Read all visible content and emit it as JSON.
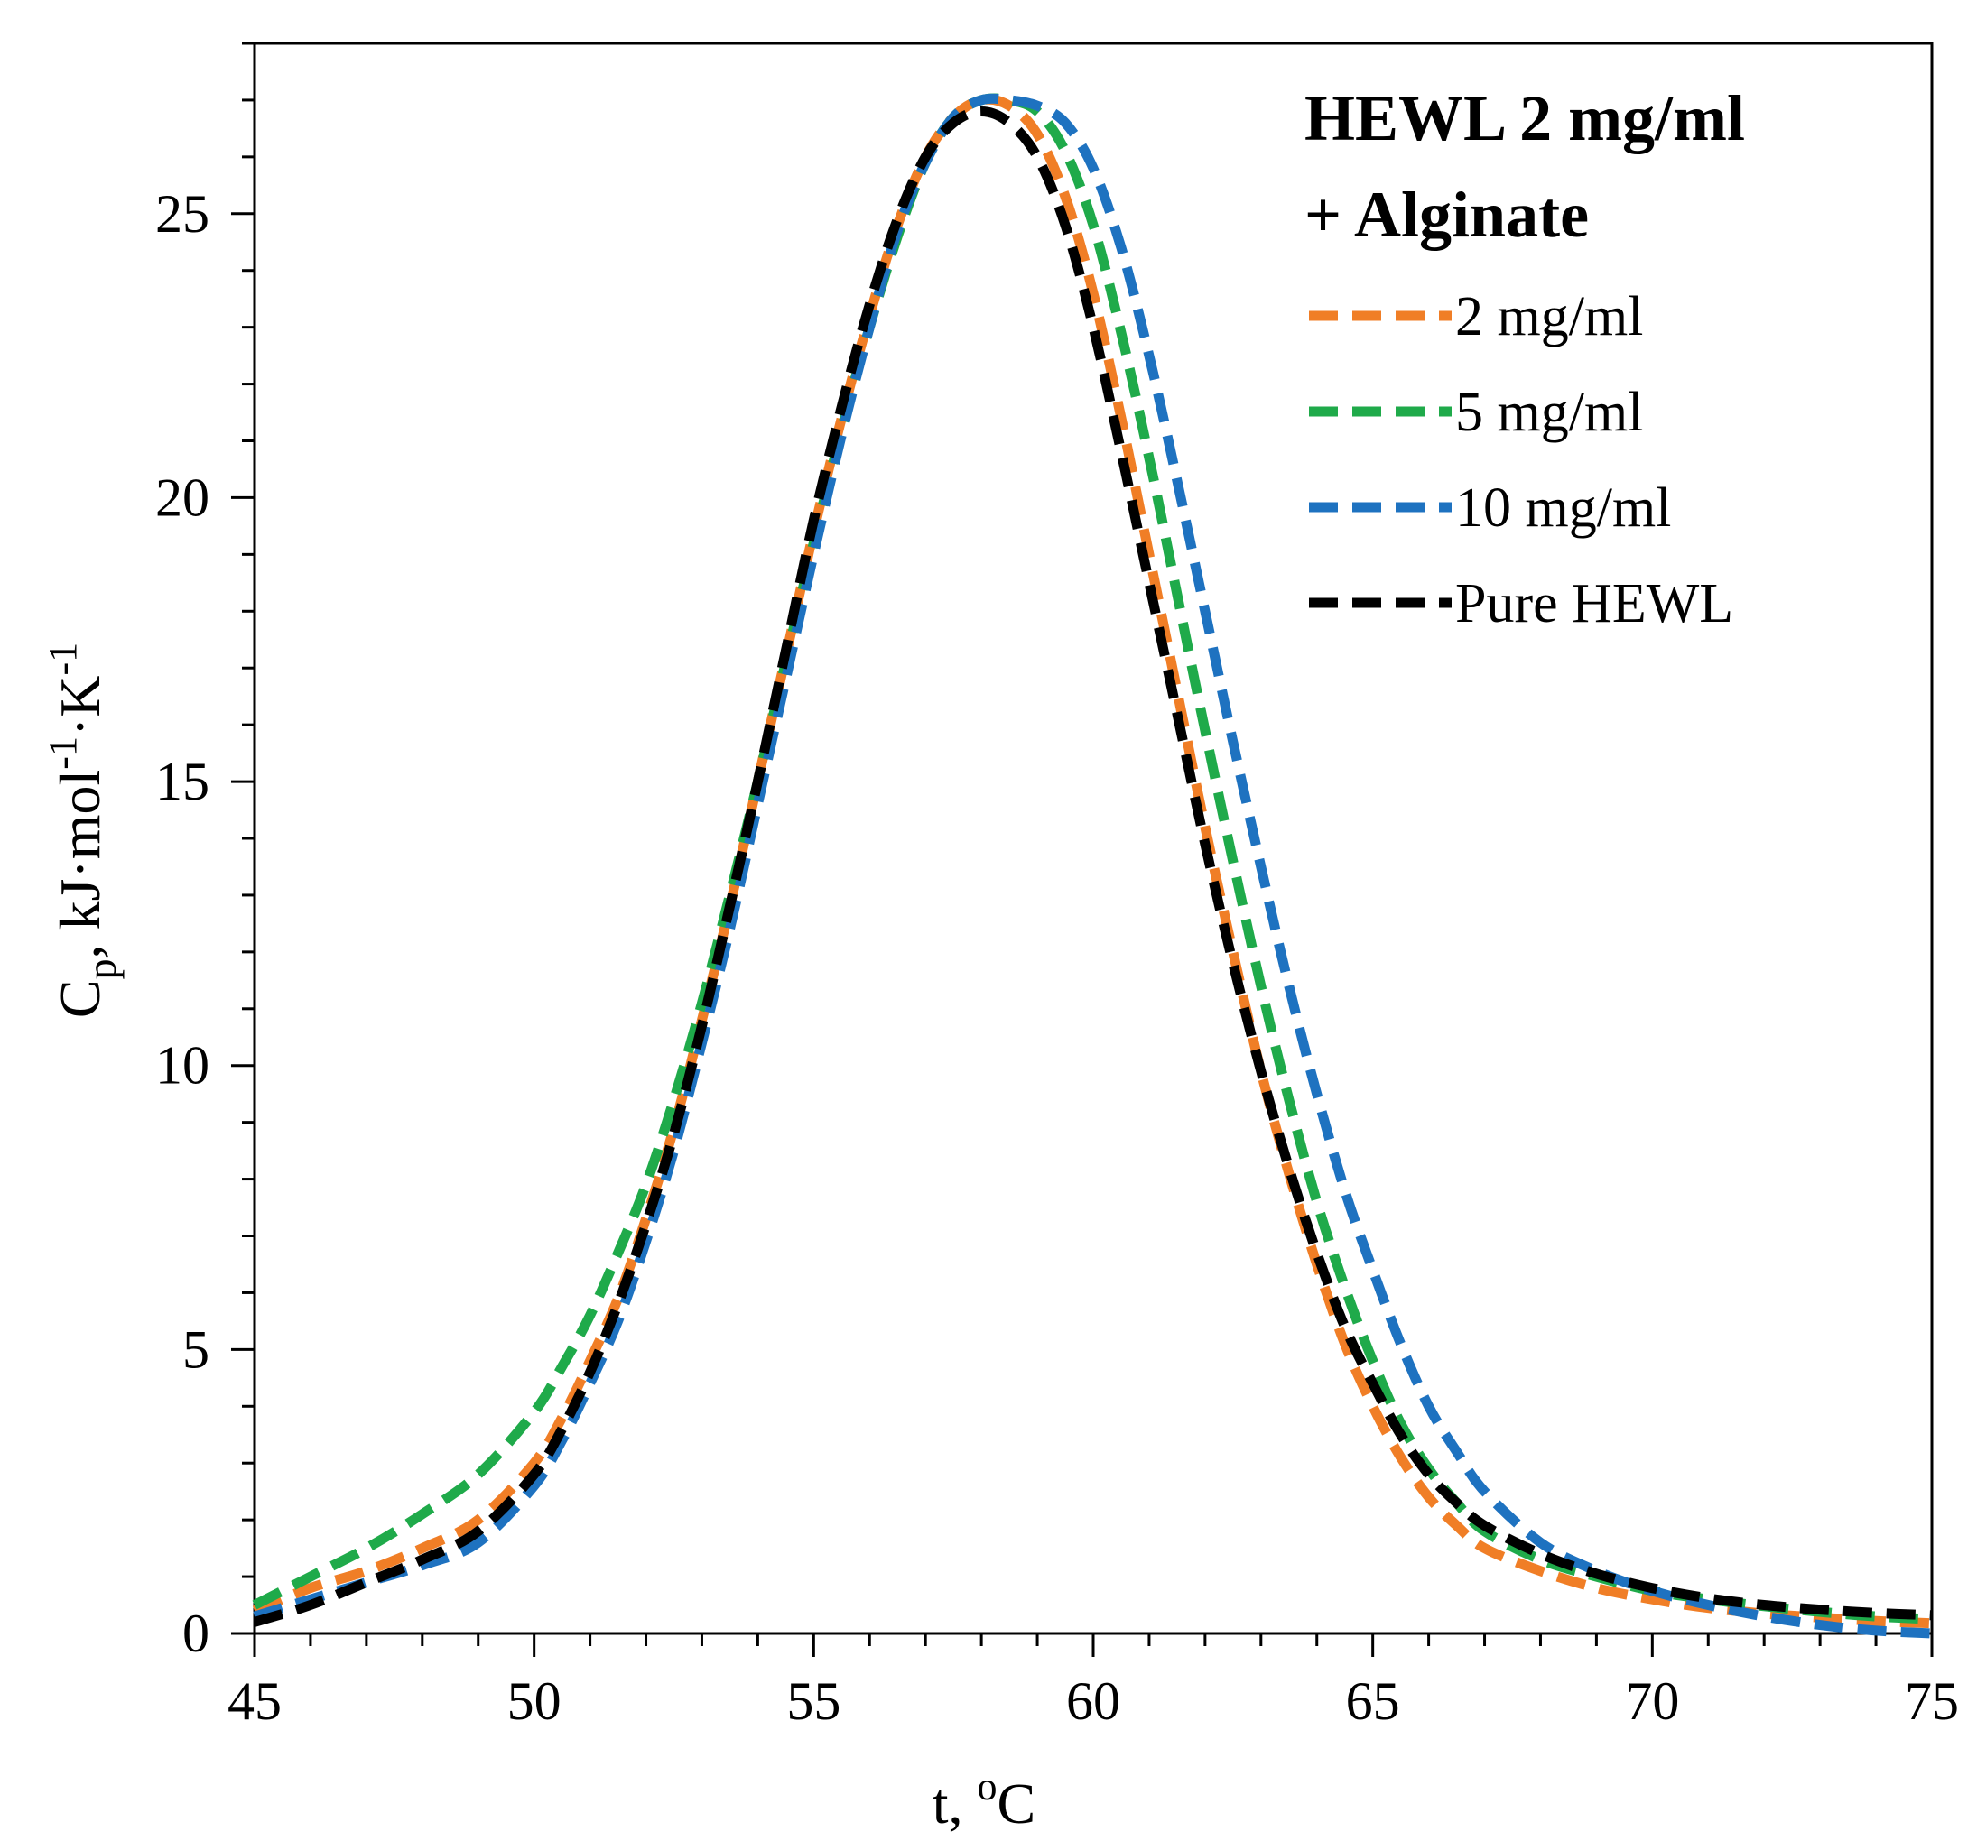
{
  "chart_data": {
    "type": "line",
    "title_line1": "HEWL 2 mg/ml",
    "title_line2": "+ Alginate",
    "xlabel": {
      "prefix": "t, ",
      "sup": "o",
      "unit": "C"
    },
    "ylabel": {
      "main": "C",
      "sub": "p",
      "rest1": ", kJ·mol",
      "sup1": "-1",
      "rest2": "·K",
      "sup2": "-1"
    },
    "xlim": [
      45,
      75
    ],
    "ylim": [
      0,
      28
    ],
    "xticks": [
      45,
      50,
      55,
      60,
      65,
      70,
      75
    ],
    "yticks": [
      0,
      5,
      10,
      15,
      20,
      25
    ],
    "x_minor_step": 1,
    "y_minor_step": 1,
    "grid": false,
    "legend_position": "top-right",
    "series": [
      {
        "name": "2 mg/ml",
        "color": "#F07E26",
        "x": [
          45,
          46,
          47,
          48,
          49,
          50,
          50.5,
          51,
          51.5,
          52,
          52.5,
          53,
          53.5,
          54,
          54.5,
          55,
          55.5,
          56,
          56.5,
          57,
          57.5,
          58,
          58.5,
          59,
          59.5,
          60,
          60.5,
          61,
          61.5,
          62,
          62.5,
          63,
          63.5,
          64,
          64.5,
          65,
          65.5,
          66,
          66.5,
          67,
          68,
          69,
          70,
          71,
          72,
          73,
          74,
          75
        ],
        "values": [
          0.4,
          0.8,
          1.1,
          1.5,
          2.0,
          3.0,
          3.8,
          4.8,
          5.9,
          7.3,
          8.9,
          10.8,
          12.8,
          15.0,
          17.2,
          19.4,
          21.4,
          23.2,
          24.8,
          26.0,
          26.7,
          27.0,
          26.9,
          26.4,
          25.3,
          23.6,
          21.4,
          19.0,
          16.6,
          14.2,
          12.0,
          9.9,
          8.1,
          6.5,
          5.1,
          4.0,
          3.1,
          2.4,
          1.9,
          1.5,
          1.1,
          0.8,
          0.6,
          0.45,
          0.35,
          0.28,
          0.22,
          0.18
        ]
      },
      {
        "name": "5 mg/ml",
        "color": "#1FAA4A",
        "x": [
          45,
          46,
          47,
          48,
          49,
          50,
          50.5,
          51,
          51.5,
          52,
          52.5,
          53,
          53.5,
          54,
          54.5,
          55,
          55.5,
          56,
          56.5,
          57,
          57.5,
          58,
          58.5,
          59,
          59.5,
          60,
          60.5,
          61,
          61.5,
          62,
          62.5,
          63,
          63.5,
          64,
          64.5,
          65,
          65.5,
          66,
          66.5,
          67,
          68,
          69,
          70,
          71,
          72,
          73,
          74,
          75
        ],
        "values": [
          0.5,
          1.0,
          1.5,
          2.1,
          2.8,
          3.9,
          4.7,
          5.6,
          6.7,
          7.9,
          9.4,
          11.1,
          13.0,
          15.0,
          17.1,
          19.2,
          21.2,
          23.0,
          24.6,
          25.9,
          26.7,
          27.0,
          27.0,
          26.8,
          26.1,
          24.8,
          22.9,
          20.7,
          18.3,
          15.9,
          13.6,
          11.4,
          9.4,
          7.6,
          6.1,
          4.8,
          3.7,
          2.9,
          2.3,
          1.8,
          1.3,
          1.0,
          0.75,
          0.6,
          0.48,
          0.38,
          0.3,
          0.25
        ]
      },
      {
        "name": "10 mg/ml",
        "color": "#1E72C0",
        "x": [
          45,
          46,
          47,
          48,
          49,
          50,
          50.5,
          51,
          51.5,
          52,
          52.5,
          53,
          53.5,
          54,
          54.5,
          55,
          55.5,
          56,
          56.5,
          57,
          57.5,
          58,
          58.5,
          59,
          59.5,
          60,
          60.5,
          61,
          61.5,
          62,
          62.5,
          63,
          63.5,
          64,
          64.5,
          65,
          65.5,
          66,
          66.5,
          67,
          68,
          69,
          70,
          71,
          72,
          73,
          74,
          75
        ],
        "values": [
          0.3,
          0.6,
          0.9,
          1.2,
          1.6,
          2.6,
          3.4,
          4.4,
          5.5,
          6.9,
          8.5,
          10.4,
          12.4,
          14.6,
          16.8,
          19.0,
          21.1,
          23.0,
          24.7,
          25.9,
          26.7,
          27.0,
          27.0,
          26.9,
          26.6,
          25.8,
          24.4,
          22.5,
          20.3,
          18.0,
          15.7,
          13.5,
          11.4,
          9.5,
          7.8,
          6.4,
          5.1,
          4.0,
          3.2,
          2.5,
          1.6,
          1.1,
          0.75,
          0.5,
          0.3,
          0.15,
          0.05,
          0.0
        ]
      },
      {
        "name": "Pure HEWL",
        "color": "#000000",
        "x": [
          45,
          46,
          47,
          48,
          49,
          50,
          50.5,
          51,
          51.5,
          52,
          52.5,
          53,
          53.5,
          54,
          54.5,
          55,
          55.5,
          56,
          56.5,
          57,
          57.5,
          58,
          58.5,
          59,
          59.5,
          60,
          60.5,
          61,
          61.5,
          62,
          62.5,
          63,
          63.5,
          64,
          64.5,
          65,
          65.5,
          66,
          66.5,
          67,
          68,
          69,
          70,
          71,
          72,
          73,
          74,
          75
        ],
        "values": [
          0.2,
          0.5,
          0.9,
          1.3,
          1.8,
          2.8,
          3.6,
          4.6,
          5.8,
          7.2,
          8.8,
          10.7,
          12.8,
          15.0,
          17.3,
          19.6,
          21.6,
          23.4,
          24.9,
          26.0,
          26.6,
          26.8,
          26.6,
          26.0,
          24.8,
          23.0,
          20.8,
          18.5,
          16.2,
          13.9,
          11.8,
          9.9,
          8.2,
          6.7,
          5.4,
          4.4,
          3.5,
          2.8,
          2.3,
          1.9,
          1.4,
          1.05,
          0.8,
          0.62,
          0.5,
          0.42,
          0.36,
          0.32
        ]
      }
    ]
  }
}
